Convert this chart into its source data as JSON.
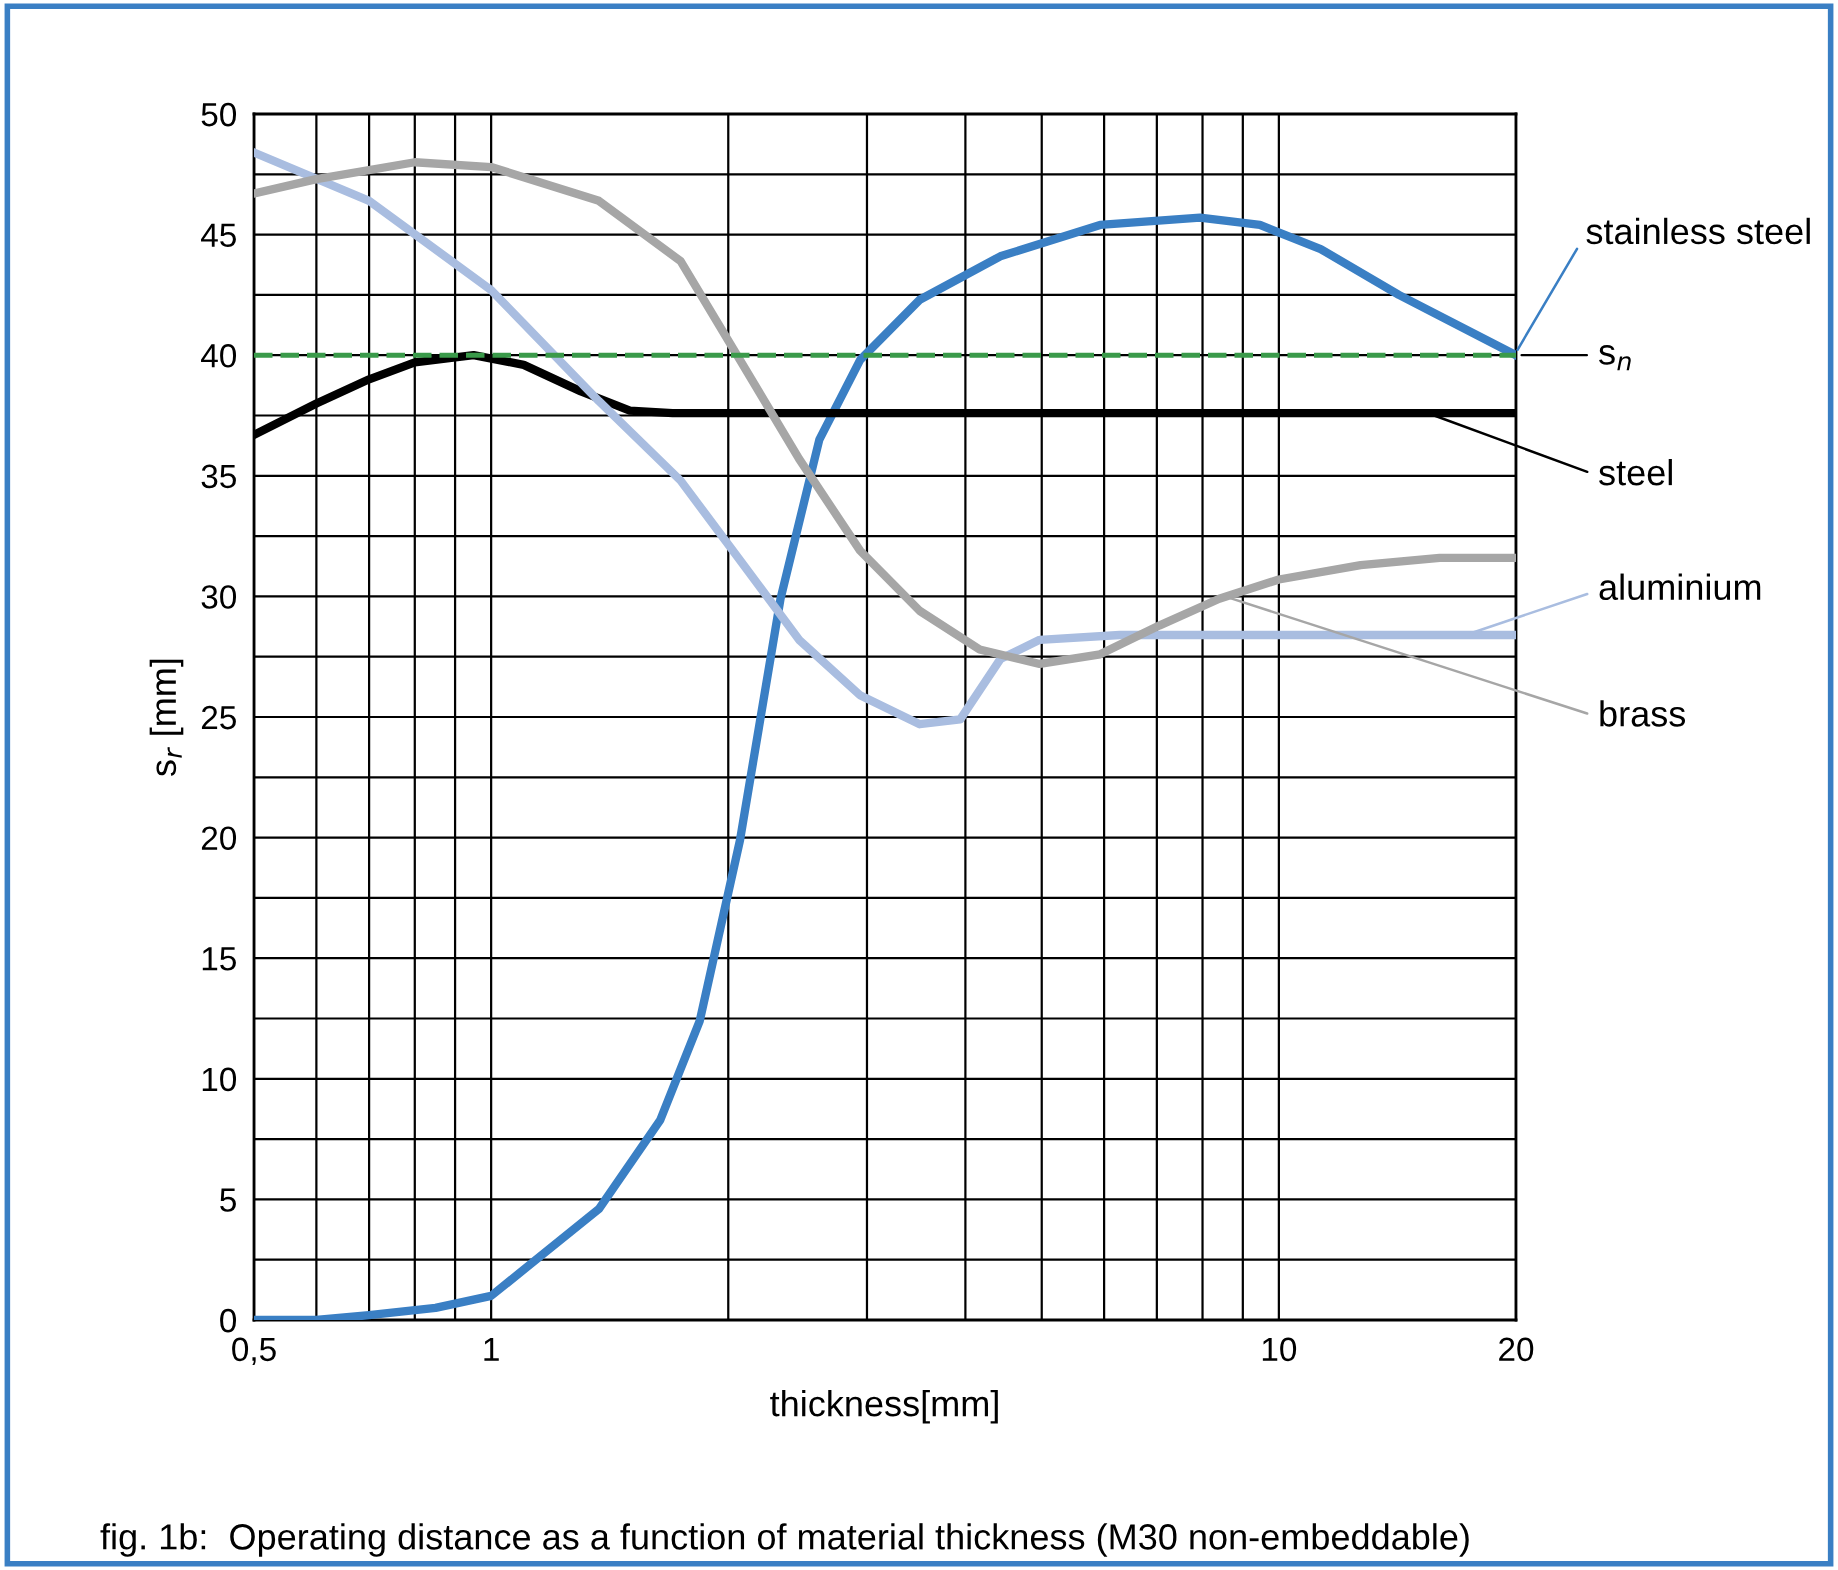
{
  "chart_data": {
    "type": "line",
    "xlabel": "thickness[mm]",
    "ylabel": "s$_{r}$ [mm]",
    "log": "x",
    "grid": true,
    "marker": "none",
    "line_style": "solid",
    "xlim": [
      0.5,
      20
    ],
    "ylim": [
      0,
      50
    ],
    "xticks": [
      {
        "value": 0.5,
        "label": "0,5"
      },
      {
        "value": 0.6,
        "label": null
      },
      {
        "value": 0.7,
        "label": null
      },
      {
        "value": 0.8,
        "label": null
      },
      {
        "value": 0.9,
        "label": null
      },
      1,
      {
        "value": 2,
        "label": null
      },
      {
        "value": 3,
        "label": null
      },
      {
        "value": 4,
        "label": null
      },
      {
        "value": 5,
        "label": null
      },
      {
        "value": 6,
        "label": null
      },
      {
        "value": 7,
        "label": null
      },
      {
        "value": 8,
        "label": null
      },
      {
        "value": 9,
        "label": null
      },
      10,
      20
    ],
    "yticks": [
      0,
      {
        "value": 2.5,
        "label": null
      },
      5,
      {
        "value": 7.5,
        "label": null
      },
      10,
      {
        "value": 12.5,
        "label": null
      },
      15,
      {
        "value": 17.5,
        "label": null
      },
      20,
      {
        "value": 22.5,
        "label": null
      },
      25,
      {
        "value": 27.5,
        "label": null
      },
      30,
      {
        "value": 32.5,
        "label": null
      },
      35,
      {
        "value": 37.5,
        "label": null
      },
      40,
      {
        "value": 42.5,
        "label": null
      },
      45,
      {
        "value": 47.5,
        "label": null
      },
      50
    ],
    "series": [
      {
        "name": "stainless steel",
        "color": "#3a7fc4",
        "x": [
          0.5,
          0.6,
          0.7,
          0.85,
          1,
          1.37,
          1.64,
          1.84,
          2.07,
          2.33,
          2.61,
          2.94,
          3.5,
          4.43,
          5.93,
          7.94,
          9.46,
          11.3,
          14.2,
          20
        ],
        "values": [
          0,
          0,
          0.2,
          0.5,
          1.0,
          4.6,
          8.3,
          12.4,
          19.9,
          29.9,
          36.5,
          39.8,
          42.3,
          44.1,
          45.4,
          45.7,
          45.4,
          44.4,
          42.5,
          40
        ]
      },
      {
        "name": "steel",
        "color": "#000000",
        "x": [
          0.5,
          0.6,
          0.7,
          0.8,
          0.95,
          1.1,
          1.3,
          1.5,
          1.7,
          20
        ],
        "values": [
          36.7,
          38.0,
          39.0,
          39.7,
          40.0,
          39.6,
          38.5,
          37.7,
          37.6,
          37.6
        ]
      },
      {
        "name": "aluminium",
        "color": "#a9bde0",
        "x": [
          0.5,
          0.7,
          1,
          1.37,
          1.74,
          2.07,
          2.46,
          2.94,
          3.5,
          3.94,
          4.43,
          4.97,
          6.28,
          20
        ],
        "values": [
          48.4,
          46.4,
          42.7,
          38.1,
          34.8,
          31.5,
          28.2,
          25.9,
          24.7,
          24.9,
          27.4,
          28.2,
          28.4,
          28.4
        ]
      },
      {
        "name": "brass",
        "color": "#a6a6a6",
        "x": [
          0.5,
          0.6,
          0.8,
          1,
          1.37,
          1.74,
          2.07,
          2.46,
          2.94,
          3.5,
          4.17,
          4.97,
          5.93,
          7.06,
          8.4,
          10,
          12.7,
          16,
          20
        ],
        "values": [
          46.7,
          47.3,
          48.0,
          47.8,
          46.4,
          43.9,
          39.8,
          35.7,
          31.9,
          29.4,
          27.8,
          27.2,
          27.6,
          28.8,
          29.9,
          30.7,
          31.3,
          31.6,
          31.6
        ]
      }
    ],
    "ref_lines": [
      {
        "axis": "y",
        "value": 40,
        "label": "s$_{n}$",
        "color": "#3a9a4a",
        "line_style": "dashed"
      }
    ],
    "annotations": [
      "fig. 1b:  Operating distance as a function of material thickness (M30 non-embeddable)"
    ]
  }
}
